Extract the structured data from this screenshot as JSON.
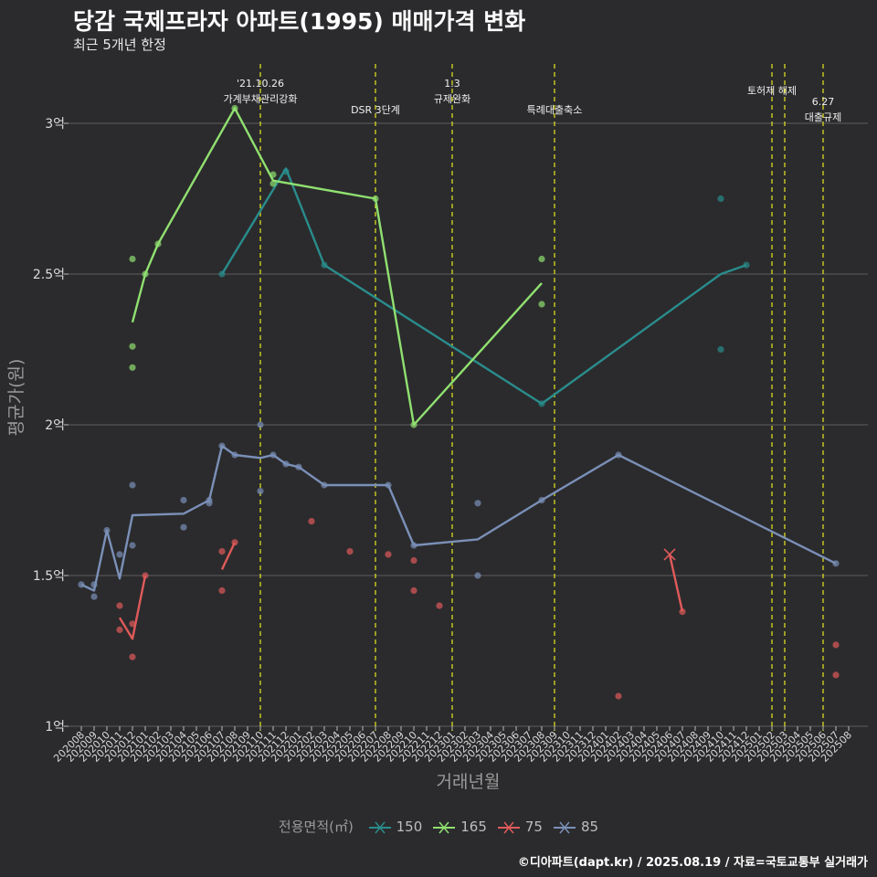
{
  "chart_data": {
    "type": "line",
    "title": "당감 국제프라자 아파트(1995) 매매가격 변화",
    "subtitle": "최근 5개년 한정",
    "xlabel": "거래년월",
    "ylabel": "평균가(원)",
    "ylim": [
      1.0,
      3.2
    ],
    "y_ticks": [
      {
        "value": 1.0,
        "label": "1억"
      },
      {
        "value": 1.5,
        "label": "1.5억"
      },
      {
        "value": 2.0,
        "label": "2억"
      },
      {
        "value": 2.5,
        "label": "2.5억"
      },
      {
        "value": 3.0,
        "label": "3억"
      }
    ],
    "categories": [
      "202008",
      "202009",
      "202010",
      "202011",
      "202012",
      "202101",
      "202102",
      "202103",
      "202104",
      "202105",
      "202106",
      "202107",
      "202108",
      "202109",
      "202110",
      "202111",
      "202112",
      "202201",
      "202202",
      "202203",
      "202204",
      "202205",
      "202206",
      "202207",
      "202208",
      "202209",
      "202210",
      "202211",
      "202212",
      "202301",
      "202302",
      "202303",
      "202304",
      "202305",
      "202306",
      "202307",
      "202308",
      "202309",
      "202310",
      "202311",
      "202312",
      "202401",
      "202402",
      "202403",
      "202404",
      "202405",
      "202406",
      "202407",
      "202408",
      "202409",
      "202410",
      "202411",
      "202412",
      "202501",
      "202502",
      "202503",
      "202504",
      "202505",
      "202506",
      "202507",
      "202508"
    ],
    "grid": true,
    "legend_title": "전용면적(㎡)",
    "legend_position": "bottom",
    "series": [
      {
        "name": "150",
        "color": "#2a8c8c",
        "line": [
          [
            "202107",
            2.5
          ],
          [
            "202112",
            2.85
          ],
          [
            "202203",
            2.53
          ],
          [
            "202308",
            2.07
          ],
          [
            "202410",
            2.5
          ],
          [
            "202412",
            2.53
          ]
        ],
        "points": [
          [
            "202107",
            2.5
          ],
          [
            "202112",
            2.84
          ],
          [
            "202203",
            2.53
          ],
          [
            "202308",
            2.07
          ],
          [
            "202410",
            2.75
          ],
          [
            "202410",
            2.25
          ],
          [
            "202412",
            2.53
          ]
        ]
      },
      {
        "name": "165",
        "color": "#90e070",
        "line": [
          [
            "202012",
            2.34
          ],
          [
            "202101",
            2.5
          ],
          [
            "202102",
            2.6
          ],
          [
            "202108",
            3.05
          ],
          [
            "202111",
            2.81
          ],
          [
            "202207",
            2.75
          ],
          [
            "202210",
            2.0
          ],
          [
            "202308",
            2.47
          ]
        ],
        "points": [
          [
            "202012",
            2.55
          ],
          [
            "202012",
            2.26
          ],
          [
            "202012",
            2.19
          ],
          [
            "202101",
            2.5
          ],
          [
            "202102",
            2.6
          ],
          [
            "202108",
            3.05
          ],
          [
            "202111",
            2.83
          ],
          [
            "202111",
            2.8
          ],
          [
            "202207",
            2.75
          ],
          [
            "202210",
            2.0
          ],
          [
            "202308",
            2.55
          ],
          [
            "202308",
            2.4
          ]
        ]
      },
      {
        "name": "75",
        "color": "#e05a5a",
        "line": [
          [
            "202011",
            1.36
          ],
          [
            "202012",
            1.29
          ],
          [
            "202101",
            1.5
          ]
        ],
        "line2": [
          [
            "202107",
            1.52
          ],
          [
            "202108",
            1.61
          ]
        ],
        "line3": [
          [
            "202406",
            1.57
          ],
          [
            "202407",
            1.38
          ]
        ],
        "points": [
          [
            "202011",
            1.4
          ],
          [
            "202011",
            1.32
          ],
          [
            "202012",
            1.34
          ],
          [
            "202012",
            1.23
          ],
          [
            "202101",
            1.5
          ],
          [
            "202107",
            1.58
          ],
          [
            "202107",
            1.45
          ],
          [
            "202108",
            1.61
          ],
          [
            "202202",
            1.68
          ],
          [
            "202205",
            1.58
          ],
          [
            "202208",
            1.57
          ],
          [
            "202210",
            1.55
          ],
          [
            "202210",
            1.45
          ],
          [
            "202212",
            1.4
          ],
          [
            "202402",
            1.1
          ],
          [
            "202407",
            1.38
          ],
          [
            "202507",
            1.27
          ],
          [
            "202507",
            1.17
          ]
        ],
        "cross_points": [
          [
            "202406",
            1.57
          ]
        ]
      },
      {
        "name": "85",
        "color": "#7b90b8",
        "line": [
          [
            "202008",
            1.47
          ],
          [
            "202009",
            1.45
          ],
          [
            "202010",
            1.65
          ],
          [
            "202011",
            1.49
          ],
          [
            "202012",
            1.7
          ],
          [
            "202104",
            1.705
          ],
          [
            "202106",
            1.75
          ],
          [
            "202107",
            1.93
          ],
          [
            "202108",
            1.9
          ],
          [
            "202110",
            1.89
          ],
          [
            "202111",
            1.9
          ],
          [
            "202112",
            1.87
          ],
          [
            "202201",
            1.86
          ],
          [
            "202203",
            1.8
          ],
          [
            "202208",
            1.8
          ],
          [
            "202210",
            1.6
          ],
          [
            "202303",
            1.62
          ],
          [
            "202308",
            1.75
          ],
          [
            "202402",
            1.9
          ],
          [
            "202507",
            1.54
          ]
        ],
        "points": [
          [
            "202008",
            1.47
          ],
          [
            "202009",
            1.47
          ],
          [
            "202009",
            1.43
          ],
          [
            "202010",
            1.65
          ],
          [
            "202011",
            1.57
          ],
          [
            "202012",
            1.8
          ],
          [
            "202012",
            1.6
          ],
          [
            "202104",
            1.75
          ],
          [
            "202104",
            1.66
          ],
          [
            "202106",
            1.75
          ],
          [
            "202106",
            1.74
          ],
          [
            "202107",
            1.93
          ],
          [
            "202108",
            1.9
          ],
          [
            "202110",
            2.0
          ],
          [
            "202110",
            1.78
          ],
          [
            "202111",
            1.9
          ],
          [
            "202112",
            1.87
          ],
          [
            "202201",
            1.86
          ],
          [
            "202203",
            1.8
          ],
          [
            "202208",
            1.8
          ],
          [
            "202210",
            1.6
          ],
          [
            "202303",
            1.74
          ],
          [
            "202303",
            1.5
          ],
          [
            "202308",
            1.75
          ],
          [
            "202402",
            1.9
          ],
          [
            "202507",
            1.54
          ]
        ]
      }
    ],
    "annotations": [
      {
        "x": 14,
        "lines": [
          "'21.10.26",
          "가계부채관리강화"
        ],
        "tier": 1
      },
      {
        "x": 23,
        "lines": [
          "DSR 3단계"
        ],
        "tier": 2
      },
      {
        "x": 29,
        "lines": [
          "1.3",
          "규제완화"
        ],
        "tier": 1
      },
      {
        "x": 37,
        "lines": [
          "특례대출축소"
        ],
        "tier": 2
      },
      {
        "x": 54,
        "lines": [
          "토허제 해제"
        ],
        "tier": 3
      },
      {
        "x": 55,
        "lines": [],
        "tier": 0
      },
      {
        "x": 58,
        "lines": [
          "6.27",
          "대출규제"
        ],
        "tier": 4
      }
    ],
    "annotation_line_color": "#e8e820"
  },
  "caption": "©디아파트(dapt.kr) / 2025.08.19 / 자료=국토교통부 실거래가"
}
